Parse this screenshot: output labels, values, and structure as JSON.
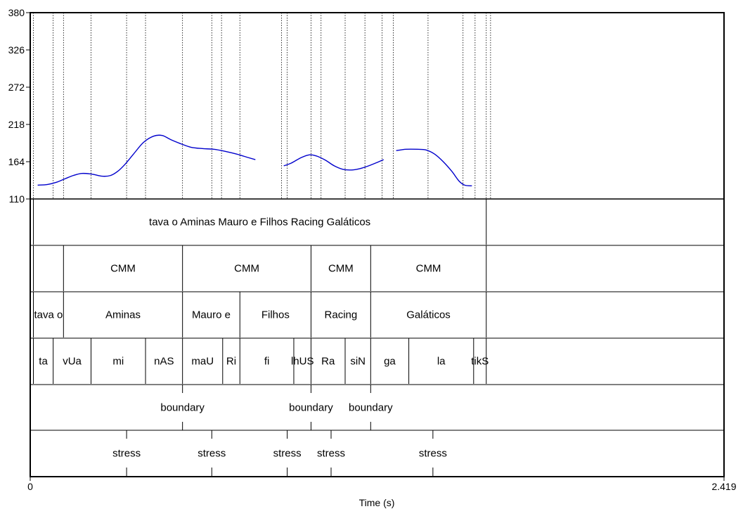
{
  "chart_data": {
    "type": "line",
    "title": "",
    "xlabel": "Time (s)",
    "ylabel": "",
    "xlim": [
      0,
      2.419
    ],
    "ylim": [
      110,
      380
    ],
    "x_tick_labels": [
      "0",
      "2.419"
    ],
    "y_tick_labels": [
      "110",
      "164",
      "218",
      "272",
      "326",
      "380"
    ],
    "line_color": "#0000cc",
    "pitch_contour": [
      [
        [
          0.026,
          130
        ],
        [
          0.06,
          131
        ],
        [
          0.09,
          134
        ],
        [
          0.12,
          139
        ],
        [
          0.15,
          144
        ],
        [
          0.18,
          147
        ],
        [
          0.215,
          146
        ],
        [
          0.25,
          143
        ],
        [
          0.28,
          144
        ],
        [
          0.305,
          150
        ],
        [
          0.33,
          160
        ],
        [
          0.36,
          175
        ],
        [
          0.395,
          192
        ],
        [
          0.43,
          201
        ],
        [
          0.46,
          202
        ],
        [
          0.49,
          196
        ],
        [
          0.525,
          190
        ],
        [
          0.56,
          185
        ],
        [
          0.6,
          183
        ],
        [
          0.64,
          182
        ],
        [
          0.68,
          179
        ],
        [
          0.72,
          175
        ],
        [
          0.76,
          170
        ],
        [
          0.785,
          167
        ]
      ],
      [
        [
          0.884,
          158
        ],
        [
          0.91,
          162
        ],
        [
          0.945,
          170
        ],
        [
          0.975,
          174
        ],
        [
          1.0,
          172
        ],
        [
          1.03,
          166
        ],
        [
          1.06,
          158
        ],
        [
          1.09,
          153
        ],
        [
          1.12,
          152
        ],
        [
          1.15,
          154
        ],
        [
          1.18,
          158
        ],
        [
          1.21,
          163
        ],
        [
          1.232,
          167
        ]
      ],
      [
        [
          1.276,
          180
        ],
        [
          1.31,
          182
        ],
        [
          1.35,
          182
        ],
        [
          1.38,
          181
        ],
        [
          1.41,
          175
        ],
        [
          1.44,
          164
        ],
        [
          1.47,
          150
        ],
        [
          1.495,
          136
        ],
        [
          1.515,
          130
        ],
        [
          1.54,
          129
        ]
      ]
    ],
    "vertical_lines_s": [
      0.011,
      0.08,
      0.116,
      0.212,
      0.336,
      0.402,
      0.531,
      0.633,
      0.667,
      0.731,
      0.876,
      0.896,
      0.979,
      1.014,
      1.098,
      1.167,
      1.227,
      1.266,
      1.387,
      1.509,
      1.551,
      1.59,
      1.605
    ],
    "tiers": [
      {
        "name": "",
        "type": "interval",
        "boundaries_s": [
          0.011,
          1.59
        ],
        "labels": [
          "tava o Aminas Mauro e Filhos Racing Galáticos"
        ]
      },
      {
        "name": "",
        "type": "interval",
        "boundaries_s": [
          0.011,
          0.116,
          0.531,
          0.979,
          1.187,
          1.59
        ],
        "labels": [
          "",
          "CMM",
          "CMM",
          "CMM",
          "CMM"
        ]
      },
      {
        "name": "",
        "type": "interval",
        "boundaries_s": [
          0.011,
          0.116,
          0.531,
          0.731,
          0.979,
          1.187,
          1.59
        ],
        "labels": [
          "tava o",
          "Aminas",
          "Mauro e",
          "Filhos",
          "Racing",
          "Galáticos"
        ]
      },
      {
        "name": "",
        "type": "interval",
        "boundaries_s": [
          0.011,
          0.08,
          0.212,
          0.402,
          0.531,
          0.671,
          0.731,
          0.919,
          0.979,
          1.098,
          1.187,
          1.32,
          1.546,
          1.59
        ],
        "labels": [
          "ta",
          "vUa",
          "mi",
          "nAS",
          "maU",
          "Ri",
          "fi",
          "lhUS",
          "Ra",
          "siN",
          "ga",
          "la",
          "tikS"
        ]
      },
      {
        "name": "",
        "type": "point",
        "points": [
          {
            "time_s": 0.531,
            "label": "boundary"
          },
          {
            "time_s": 0.979,
            "label": "boundary"
          },
          {
            "time_s": 1.187,
            "label": "boundary"
          }
        ]
      },
      {
        "name": "",
        "type": "point",
        "points": [
          {
            "time_s": 0.336,
            "label": "stress"
          },
          {
            "time_s": 0.633,
            "label": "stress"
          },
          {
            "time_s": 0.896,
            "label": "stress"
          },
          {
            "time_s": 1.049,
            "label": "stress"
          },
          {
            "time_s": 1.404,
            "label": "stress"
          }
        ]
      }
    ]
  }
}
